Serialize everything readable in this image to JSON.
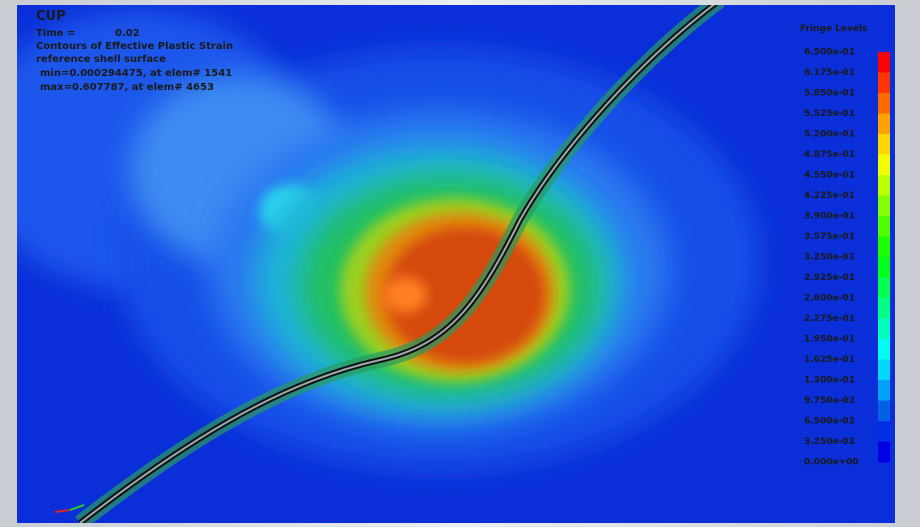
{
  "header": {
    "title": "CUP",
    "time_label": "Time =",
    "time_value": "0.02",
    "contours": "Contours of Effective Plastic Strain",
    "surface": "reference shell surface",
    "min": "min=0.000294475, at elem# 1541",
    "max": "max=0.607787, at elem# 4653"
  },
  "fringe": {
    "title": "Fringe Levels",
    "levels": [
      "6.500e-01",
      "6.175e-01",
      "5.850e-01",
      "5.525e-01",
      "5.200e-01",
      "4.875e-01",
      "4.550e-01",
      "4.225e-01",
      "3.900e-01",
      "3.575e-01",
      "3.250e-01",
      "2.925e-01",
      "2.600e-01",
      "2.275e-01",
      "1.950e-01",
      "1.625e-01",
      "1.300e-01",
      "9.750e-02",
      "6.500e-02",
      "3.250e-02",
      "0.000e+00"
    ]
  }
}
